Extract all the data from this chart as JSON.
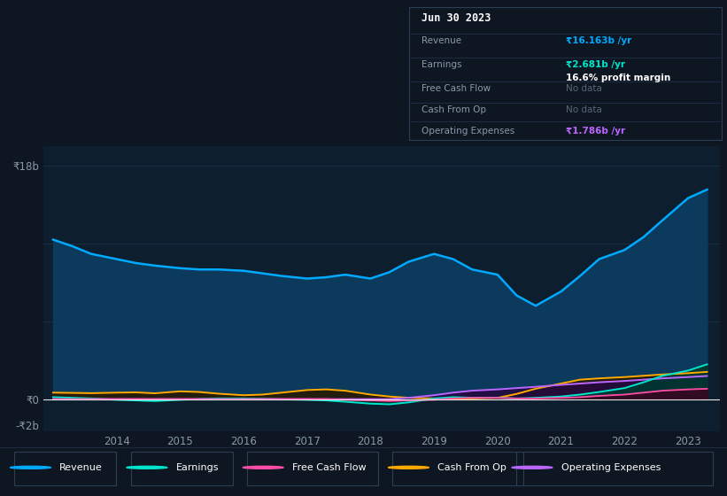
{
  "background_color": "#0e1621",
  "chart_bg": "#0d1e2e",
  "grid_color": "#1a3048",
  "years": [
    2013.0,
    2013.3,
    2013.6,
    2014.0,
    2014.3,
    2014.6,
    2015.0,
    2015.3,
    2015.6,
    2016.0,
    2016.3,
    2016.6,
    2017.0,
    2017.3,
    2017.6,
    2018.0,
    2018.3,
    2018.6,
    2019.0,
    2019.3,
    2019.6,
    2020.0,
    2020.3,
    2020.6,
    2021.0,
    2021.3,
    2021.6,
    2022.0,
    2022.3,
    2022.6,
    2023.0,
    2023.3
  ],
  "revenue": [
    12.3,
    11.8,
    11.2,
    10.8,
    10.5,
    10.3,
    10.1,
    10.0,
    10.0,
    9.9,
    9.7,
    9.5,
    9.3,
    9.4,
    9.6,
    9.3,
    9.8,
    10.6,
    11.2,
    10.8,
    10.0,
    9.6,
    8.0,
    7.2,
    8.3,
    9.5,
    10.8,
    11.5,
    12.5,
    13.8,
    15.5,
    16.163
  ],
  "earnings": [
    0.15,
    0.1,
    0.05,
    -0.05,
    -0.1,
    -0.15,
    -0.05,
    0.0,
    0.05,
    0.05,
    0.02,
    -0.02,
    -0.05,
    -0.1,
    -0.2,
    -0.35,
    -0.4,
    -0.25,
    0.05,
    0.15,
    0.1,
    0.1,
    0.05,
    0.1,
    0.2,
    0.35,
    0.55,
    0.85,
    1.3,
    1.8,
    2.2,
    2.681
  ],
  "free_cash_flow": [
    0.0,
    0.0,
    0.0,
    0.0,
    0.0,
    0.0,
    0.0,
    0.0,
    0.0,
    0.0,
    0.0,
    0.0,
    0.0,
    0.0,
    -0.05,
    -0.1,
    -0.15,
    -0.1,
    -0.05,
    0.05,
    0.1,
    0.1,
    0.05,
    0.05,
    0.1,
    0.15,
    0.25,
    0.35,
    0.5,
    0.65,
    0.75,
    0.8
  ],
  "cash_from_op": [
    0.5,
    0.48,
    0.46,
    0.5,
    0.52,
    0.45,
    0.6,
    0.55,
    0.42,
    0.3,
    0.35,
    0.5,
    0.7,
    0.75,
    0.65,
    0.35,
    0.2,
    0.1,
    0.05,
    0.02,
    0.05,
    0.1,
    0.4,
    0.8,
    1.2,
    1.5,
    1.6,
    1.7,
    1.8,
    1.9,
    2.0,
    2.1
  ],
  "operating_expenses": [
    0.0,
    0.0,
    0.0,
    0.0,
    0.0,
    0.0,
    0.0,
    0.0,
    0.0,
    0.0,
    0.0,
    0.0,
    0.0,
    0.0,
    0.0,
    0.0,
    0.0,
    0.1,
    0.3,
    0.5,
    0.65,
    0.75,
    0.85,
    0.95,
    1.1,
    1.2,
    1.3,
    1.4,
    1.5,
    1.6,
    1.7,
    1.786
  ],
  "revenue_color": "#00aaff",
  "revenue_fill": "#0c3a5c",
  "earnings_color": "#00e5cc",
  "earnings_fill": "#003830",
  "fcf_color": "#ff4da6",
  "fcf_fill": "#3a0520",
  "cashop_color": "#ffaa00",
  "cashop_fill": "#2a1800",
  "opex_color": "#bb66ff",
  "opex_fill": "#250840",
  "xtick_years": [
    2014,
    2015,
    2016,
    2017,
    2018,
    2019,
    2020,
    2021,
    2022,
    2023
  ],
  "info_box": {
    "date": "Jun 30 2023",
    "revenue_val": "₹16.163b /yr",
    "earnings_val": "₹2.681b /yr",
    "margin": "16.6% profit margin",
    "fcf_val": "No data",
    "cashop_val": "No data",
    "opex_val": "₹1.786b /yr"
  },
  "legend_items": [
    {
      "label": "Revenue",
      "color": "#00aaff"
    },
    {
      "label": "Earnings",
      "color": "#00e5cc"
    },
    {
      "label": "Free Cash Flow",
      "color": "#ff4da6"
    },
    {
      "label": "Cash From Op",
      "color": "#ffaa00"
    },
    {
      "label": "Operating Expenses",
      "color": "#bb66ff"
    }
  ]
}
